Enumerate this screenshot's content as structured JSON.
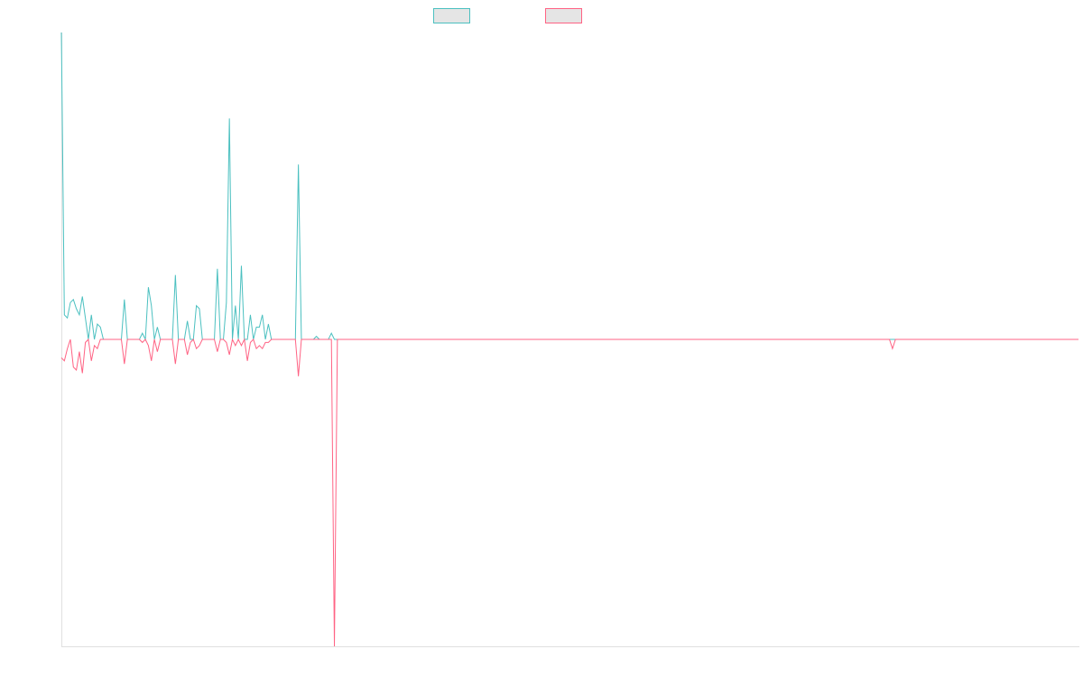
{
  "chart_data": {
    "type": "line",
    "title": "",
    "xlabel": "",
    "ylabel": "",
    "x_range": [
      0,
      339
    ],
    "ylim": [
      -100,
      100
    ],
    "grid": false,
    "legend_position": "top-center",
    "series": [
      {
        "color": "#4bc0c0",
        "fill": "#e5e5e5",
        "points": [
          [
            0,
            100
          ],
          [
            1,
            8
          ],
          [
            2,
            7
          ],
          [
            3,
            12
          ],
          [
            4,
            13
          ],
          [
            5,
            10
          ],
          [
            6,
            8
          ],
          [
            7,
            14
          ],
          [
            8,
            7
          ],
          [
            9,
            0
          ],
          [
            10,
            8
          ],
          [
            11,
            0
          ],
          [
            12,
            5
          ],
          [
            13,
            4
          ],
          [
            14,
            0
          ],
          [
            15,
            0
          ],
          [
            16,
            0
          ],
          [
            17,
            0
          ],
          [
            18,
            0
          ],
          [
            19,
            0
          ],
          [
            20,
            0
          ],
          [
            21,
            13
          ],
          [
            22,
            0
          ],
          [
            23,
            0
          ],
          [
            24,
            0
          ],
          [
            25,
            0
          ],
          [
            26,
            0
          ],
          [
            27,
            2
          ],
          [
            28,
            0
          ],
          [
            29,
            17
          ],
          [
            30,
            11
          ],
          [
            31,
            0
          ],
          [
            32,
            4
          ],
          [
            33,
            0
          ],
          [
            34,
            0
          ],
          [
            35,
            0
          ],
          [
            36,
            0
          ],
          [
            37,
            0
          ],
          [
            38,
            21
          ],
          [
            39,
            0
          ],
          [
            40,
            0
          ],
          [
            41,
            0
          ],
          [
            42,
            6
          ],
          [
            43,
            0
          ],
          [
            44,
            0
          ],
          [
            45,
            11
          ],
          [
            46,
            10
          ],
          [
            47,
            0
          ],
          [
            48,
            0
          ],
          [
            49,
            0
          ],
          [
            50,
            0
          ],
          [
            51,
            0
          ],
          [
            52,
            23
          ],
          [
            53,
            0
          ],
          [
            54,
            0
          ],
          [
            55,
            12
          ],
          [
            56,
            72
          ],
          [
            57,
            0
          ],
          [
            58,
            11
          ],
          [
            59,
            0
          ],
          [
            60,
            24
          ],
          [
            61,
            0
          ],
          [
            62,
            0
          ],
          [
            63,
            8
          ],
          [
            64,
            0
          ],
          [
            65,
            4
          ],
          [
            66,
            4
          ],
          [
            67,
            8
          ],
          [
            68,
            0
          ],
          [
            69,
            5
          ],
          [
            70,
            0
          ],
          [
            71,
            0
          ],
          [
            72,
            0
          ],
          [
            73,
            0
          ],
          [
            74,
            0
          ],
          [
            75,
            0
          ],
          [
            76,
            0
          ],
          [
            77,
            0
          ],
          [
            78,
            0
          ],
          [
            79,
            57
          ],
          [
            80,
            0
          ],
          [
            81,
            0
          ],
          [
            82,
            0
          ],
          [
            83,
            0
          ],
          [
            84,
            0
          ],
          [
            85,
            1
          ],
          [
            86,
            0
          ],
          [
            87,
            0
          ],
          [
            88,
            0
          ],
          [
            89,
            0
          ],
          [
            90,
            2
          ],
          [
            91,
            0
          ],
          [
            339,
            0
          ]
        ]
      },
      {
        "color": "#ff6384",
        "fill": "#e5e5e5",
        "points": [
          [
            0,
            -6
          ],
          [
            1,
            -7
          ],
          [
            2,
            -3
          ],
          [
            3,
            0
          ],
          [
            4,
            -9
          ],
          [
            5,
            -10
          ],
          [
            6,
            -4
          ],
          [
            7,
            -11
          ],
          [
            8,
            -1
          ],
          [
            9,
            0
          ],
          [
            10,
            -7
          ],
          [
            11,
            -2
          ],
          [
            12,
            -3
          ],
          [
            13,
            0
          ],
          [
            14,
            0
          ],
          [
            15,
            0
          ],
          [
            16,
            0
          ],
          [
            17,
            0
          ],
          [
            18,
            0
          ],
          [
            19,
            0
          ],
          [
            20,
            0
          ],
          [
            21,
            -8
          ],
          [
            22,
            0
          ],
          [
            23,
            0
          ],
          [
            24,
            0
          ],
          [
            25,
            0
          ],
          [
            26,
            0
          ],
          [
            27,
            -1
          ],
          [
            28,
            0
          ],
          [
            29,
            -2
          ],
          [
            30,
            -7
          ],
          [
            31,
            0
          ],
          [
            32,
            -4
          ],
          [
            33,
            0
          ],
          [
            34,
            0
          ],
          [
            35,
            0
          ],
          [
            36,
            0
          ],
          [
            37,
            0
          ],
          [
            38,
            -8
          ],
          [
            39,
            0
          ],
          [
            40,
            0
          ],
          [
            41,
            0
          ],
          [
            42,
            -5
          ],
          [
            43,
            -1
          ],
          [
            44,
            0
          ],
          [
            45,
            -3
          ],
          [
            46,
            -2
          ],
          [
            47,
            0
          ],
          [
            48,
            0
          ],
          [
            49,
            0
          ],
          [
            50,
            0
          ],
          [
            51,
            0
          ],
          [
            52,
            -4
          ],
          [
            53,
            0
          ],
          [
            54,
            0
          ],
          [
            55,
            -1
          ],
          [
            56,
            -5
          ],
          [
            57,
            0
          ],
          [
            58,
            -2
          ],
          [
            59,
            0
          ],
          [
            60,
            -2
          ],
          [
            61,
            0
          ],
          [
            62,
            -7
          ],
          [
            63,
            -1
          ],
          [
            64,
            0
          ],
          [
            65,
            -3
          ],
          [
            66,
            -2
          ],
          [
            67,
            -3
          ],
          [
            68,
            -1
          ],
          [
            69,
            -1
          ],
          [
            70,
            0
          ],
          [
            71,
            0
          ],
          [
            72,
            0
          ],
          [
            73,
            0
          ],
          [
            74,
            0
          ],
          [
            75,
            0
          ],
          [
            76,
            0
          ],
          [
            77,
            0
          ],
          [
            78,
            0
          ],
          [
            79,
            -12
          ],
          [
            80,
            0
          ],
          [
            81,
            0
          ],
          [
            82,
            0
          ],
          [
            83,
            0
          ],
          [
            84,
            0
          ],
          [
            85,
            0
          ],
          [
            86,
            0
          ],
          [
            87,
            0
          ],
          [
            88,
            0
          ],
          [
            89,
            0
          ],
          [
            90,
            0
          ],
          [
            91,
            -100
          ],
          [
            92,
            0
          ],
          [
            276,
            0
          ],
          [
            277,
            -3
          ],
          [
            278,
            0
          ],
          [
            339,
            0
          ]
        ]
      }
    ]
  }
}
